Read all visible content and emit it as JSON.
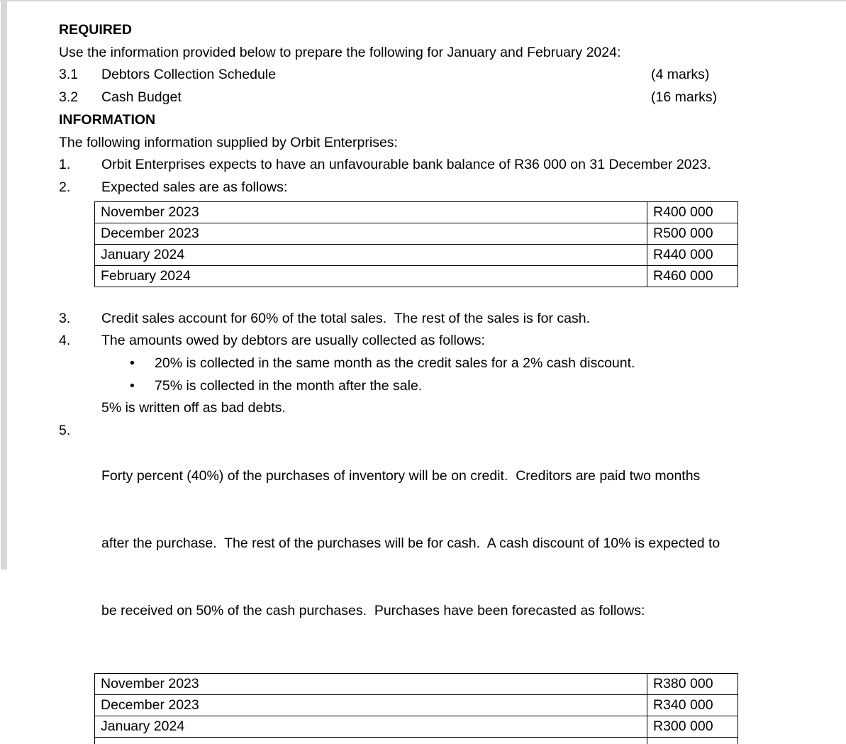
{
  "page": {
    "required_heading": "REQUIRED",
    "intro": "Use the information provided below to prepare the following for January and February 2024:",
    "tasks": [
      {
        "number": "3.1",
        "label": "Debtors Collection Schedule",
        "marks": "(4 marks)"
      },
      {
        "number": "3.2",
        "label": "Cash Budget",
        "marks": "(16 marks)"
      }
    ],
    "information_heading": "INFORMATION",
    "information_intro": "The following information supplied by Orbit Enterprises:",
    "item1": {
      "number": "1.",
      "text": "Orbit Enterprises expects to have an unfavourable bank balance of R36 000 on 31 December 2023."
    },
    "item2": {
      "number": "2.",
      "text": "Expected sales are as follows:"
    },
    "item3": {
      "number": "3.",
      "text": "Credit sales account for 60% of the total sales.  The rest of the sales is for cash."
    },
    "item4": {
      "number": "4.",
      "text": "The amounts owed by debtors are usually collected as follows:"
    },
    "bullets": [
      {
        "marker": "•",
        "text": "20% is collected in the same month as the credit sales for a 2% cash discount."
      },
      {
        "marker": "•",
        "text": "75% is collected in the month after the sale."
      }
    ],
    "bad_debts_note": "5% is written off as bad debts.",
    "item5": {
      "number": "5.",
      "lines": [
        "Forty percent (40%) of the purchases of inventory will be on credit.  Creditors are paid two months",
        "after the purchase.  The rest of the purchases will be for cash.  A cash discount of 10% is expected to",
        "be received on 50% of the cash purchases.  Purchases have been forecasted as follows:"
      ]
    },
    "sales_table": {
      "rows": [
        [
          "November 2023",
          "R400 000"
        ],
        [
          "December 2023",
          "R500 000"
        ],
        [
          "January 2024",
          "R440 000"
        ],
        [
          "February 2024",
          "R460 000"
        ]
      ]
    },
    "purchases_table": {
      "rows": [
        [
          "November 2023",
          "R380 000"
        ],
        [
          "December 2023",
          "R340 000"
        ],
        [
          "January 2024",
          "R300 000"
        ]
      ]
    }
  }
}
